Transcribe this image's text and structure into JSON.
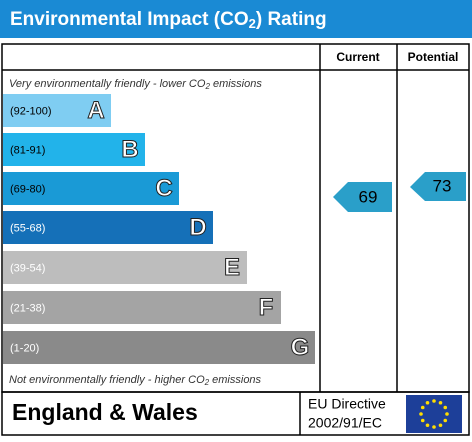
{
  "header": {
    "title_start": "Environmental Impact (CO",
    "title_sub": "2",
    "title_end": ") Rating"
  },
  "columns": {
    "current": "Current",
    "potential": "Potential"
  },
  "top_note": {
    "start": "Very environmentally friendly - lower CO",
    "sub": "2",
    "end": " emissions"
  },
  "bands": [
    {
      "range": "(92-100)",
      "letter": "A"
    },
    {
      "range": "(81-91)",
      "letter": "B"
    },
    {
      "range": "(69-80)",
      "letter": "C"
    },
    {
      "range": "(55-68)",
      "letter": "D"
    },
    {
      "range": "(39-54)",
      "letter": "E"
    },
    {
      "range": "(21-38)",
      "letter": "F"
    },
    {
      "range": "(1-20)",
      "letter": "G"
    }
  ],
  "bottom_note": {
    "start": "Not environmentally friendly - higher CO",
    "sub": "2",
    "end": " emissions"
  },
  "ratings": {
    "current": "69",
    "potential": "73"
  },
  "footer": {
    "region": "England & Wales",
    "directive_line1": "EU Directive",
    "directive_line2": "2002/91/EC"
  }
}
